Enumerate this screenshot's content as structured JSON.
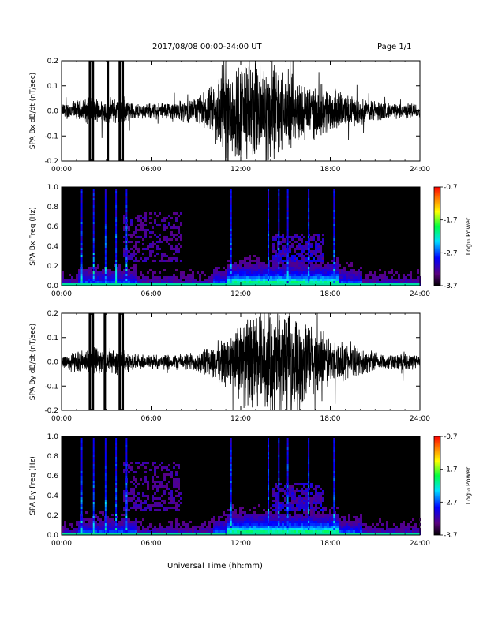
{
  "header": {
    "date_range": "2017/08/08  00:00-24:00 UT",
    "page": "Page 1/1"
  },
  "footer": {
    "xlabel": "Universal Time (hh:mm)"
  },
  "colorbar": {
    "label": "Log₁₀ Power",
    "ticks": [
      "-0.7",
      "-1.7",
      "-2.7",
      "-3.7"
    ]
  },
  "chart_data": [
    {
      "type": "line",
      "ylabel": "SPA Bx dB/dt (nT/sec)",
      "xlim": [
        "00:00",
        "24:00"
      ],
      "ylim": [
        -0.2,
        0.2
      ],
      "xticks": [
        "00:00",
        "06:00",
        "12:00",
        "18:00",
        "24:00"
      ],
      "yticks": [
        "-0.2",
        "-0.1",
        "0.0",
        "0.1",
        "0.2"
      ],
      "envelope": {
        "hours": [
          0,
          1,
          2,
          3,
          4,
          5,
          6,
          7,
          8,
          9,
          10,
          11,
          12,
          13,
          14,
          15,
          16,
          17,
          18,
          19,
          20,
          21,
          22,
          23,
          24
        ],
        "amplitude": [
          0.03,
          0.04,
          0.05,
          0.05,
          0.05,
          0.03,
          0.03,
          0.035,
          0.04,
          0.05,
          0.09,
          0.2,
          0.2,
          0.2,
          0.2,
          0.15,
          0.12,
          0.1,
          0.09,
          0.06,
          0.05,
          0.04,
          0.03,
          0.03,
          0.03
        ]
      },
      "spikes_hours": [
        1.9,
        2.1,
        3.1,
        3.9,
        4.1
      ]
    },
    {
      "type": "heatmap",
      "ylabel": "SPA Bx Freq (Hz)",
      "xlim": [
        "00:00",
        "24:00"
      ],
      "ylim": [
        0.0,
        1.0
      ],
      "xticks": [
        "00:00",
        "06:00",
        "12:00",
        "18:00",
        "24:00"
      ],
      "yticks": [
        "0.0",
        "0.2",
        "0.4",
        "0.6",
        "0.8",
        "1.0"
      ],
      "color_range": [
        -3.7,
        -0.7
      ],
      "colormap": "rainbow",
      "streak_hours": [
        1.3,
        2.1,
        2.9,
        3.6,
        4.3,
        11.3,
        13.8,
        14.5,
        15.1,
        16.5,
        18.2
      ]
    },
    {
      "type": "line",
      "ylabel": "SPA By dB/dt (nT/sec)",
      "xlim": [
        "00:00",
        "24:00"
      ],
      "ylim": [
        -0.2,
        0.2
      ],
      "xticks": [
        "00:00",
        "06:00",
        "12:00",
        "18:00",
        "24:00"
      ],
      "yticks": [
        "-0.2",
        "-0.1",
        "0.0",
        "0.1",
        "0.2"
      ],
      "envelope": {
        "hours": [
          0,
          1,
          2,
          3,
          4,
          5,
          6,
          7,
          8,
          9,
          10,
          11,
          12,
          13,
          14,
          15,
          16,
          17,
          18,
          19,
          20,
          21,
          22,
          23,
          24
        ],
        "amplitude": [
          0.03,
          0.04,
          0.05,
          0.05,
          0.05,
          0.03,
          0.03,
          0.03,
          0.03,
          0.04,
          0.06,
          0.1,
          0.16,
          0.2,
          0.2,
          0.2,
          0.17,
          0.14,
          0.1,
          0.07,
          0.05,
          0.04,
          0.03,
          0.03,
          0.03
        ]
      },
      "spikes_hours": [
        1.9,
        2.1,
        2.9,
        3.9,
        4.1
      ]
    },
    {
      "type": "heatmap",
      "ylabel": "SPA By Freq (Hz)",
      "xlim": [
        "00:00",
        "24:00"
      ],
      "ylim": [
        0.0,
        1.0
      ],
      "xticks": [
        "00:00",
        "06:00",
        "12:00",
        "18:00",
        "24:00"
      ],
      "yticks": [
        "0.0",
        "0.2",
        "0.4",
        "0.6",
        "0.8",
        "1.0"
      ],
      "color_range": [
        -3.7,
        -0.7
      ],
      "colormap": "rainbow",
      "streak_hours": [
        1.3,
        2.1,
        2.9,
        3.6,
        4.3,
        11.3,
        13.8,
        14.5,
        15.1,
        16.5,
        18.2
      ]
    }
  ]
}
